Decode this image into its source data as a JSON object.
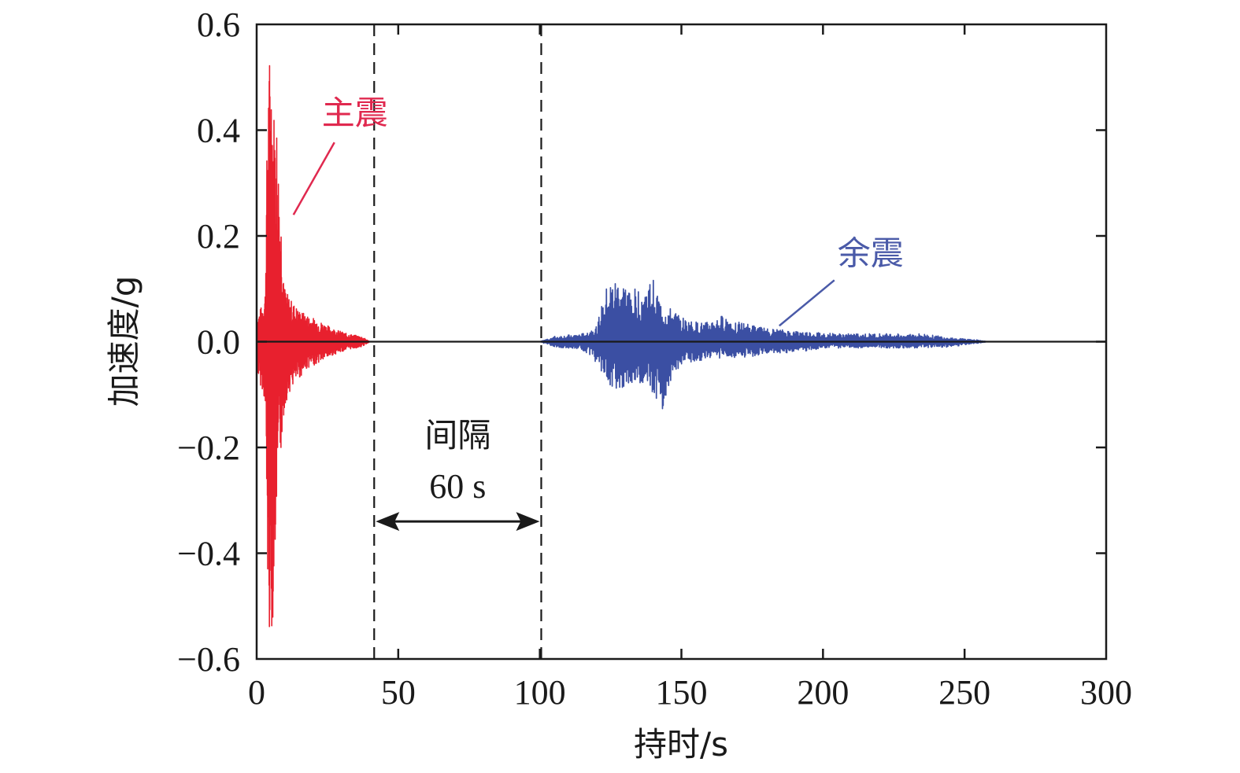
{
  "chart_data": {
    "type": "line",
    "xlabel": "持时/s",
    "ylabel": "加速度/g",
    "xlim": [
      0,
      300
    ],
    "ylim": [
      -0.6,
      0.6
    ],
    "x_ticks": [
      "0",
      "50",
      "100",
      "150",
      "200",
      "250",
      "300"
    ],
    "y_ticks": [
      "0.6",
      "0.4",
      "0.2",
      "0.0",
      "−0.2",
      "−0.4",
      "−0.6"
    ],
    "grid": false,
    "colors": {
      "mainshock": "#e8202e",
      "aftershock": "#3b4fa3",
      "baseline": "#1a1a1a",
      "mainshock_label": "#e0294f",
      "aftershock_label": "#4a5aa8"
    },
    "series": [
      {
        "name": "主震",
        "envelope": [
          {
            "t": 0,
            "max": 0.04,
            "min": -0.05
          },
          {
            "t": 1,
            "max": 0.06,
            "min": -0.08
          },
          {
            "t": 2,
            "max": 0.07,
            "min": -0.09
          },
          {
            "t": 3,
            "max": 0.1,
            "min": -0.12
          },
          {
            "t": 4,
            "max": 0.52,
            "min": -0.52
          },
          {
            "t": 5,
            "max": 0.57,
            "min": -0.58
          },
          {
            "t": 6,
            "max": 0.45,
            "min": -0.5
          },
          {
            "t": 7,
            "max": 0.44,
            "min": -0.33
          },
          {
            "t": 8,
            "max": 0.3,
            "min": -0.25
          },
          {
            "t": 9,
            "max": 0.21,
            "min": -0.18
          },
          {
            "t": 10,
            "max": 0.1,
            "min": -0.12
          },
          {
            "t": 12,
            "max": 0.08,
            "min": -0.09
          },
          {
            "t": 15,
            "max": 0.06,
            "min": -0.07
          },
          {
            "t": 18,
            "max": 0.05,
            "min": -0.05
          },
          {
            "t": 22,
            "max": 0.04,
            "min": -0.04
          },
          {
            "t": 27,
            "max": 0.025,
            "min": -0.025
          },
          {
            "t": 32,
            "max": 0.015,
            "min": -0.015
          },
          {
            "t": 37,
            "max": 0.01,
            "min": -0.01
          },
          {
            "t": 40,
            "max": 0.0,
            "min": 0.0
          }
        ]
      },
      {
        "name": "余震",
        "envelope": [
          {
            "t": 100,
            "max": 0.0,
            "min": 0.0
          },
          {
            "t": 105,
            "max": 0.01,
            "min": -0.01
          },
          {
            "t": 115,
            "max": 0.015,
            "min": -0.015
          },
          {
            "t": 120,
            "max": 0.03,
            "min": -0.04
          },
          {
            "t": 124,
            "max": 0.11,
            "min": -0.09
          },
          {
            "t": 128,
            "max": 0.12,
            "min": -0.09
          },
          {
            "t": 132,
            "max": 0.1,
            "min": -0.08
          },
          {
            "t": 137,
            "max": 0.1,
            "min": -0.09
          },
          {
            "t": 140,
            "max": 0.12,
            "min": -0.1
          },
          {
            "t": 143,
            "max": 0.07,
            "min": -0.14
          },
          {
            "t": 147,
            "max": 0.06,
            "min": -0.06
          },
          {
            "t": 152,
            "max": 0.04,
            "min": -0.04
          },
          {
            "t": 158,
            "max": 0.035,
            "min": -0.035
          },
          {
            "t": 165,
            "max": 0.05,
            "min": -0.03
          },
          {
            "t": 172,
            "max": 0.035,
            "min": -0.03
          },
          {
            "t": 180,
            "max": 0.025,
            "min": -0.025
          },
          {
            "t": 190,
            "max": 0.02,
            "min": -0.02
          },
          {
            "t": 205,
            "max": 0.015,
            "min": -0.012
          },
          {
            "t": 220,
            "max": 0.015,
            "min": -0.012
          },
          {
            "t": 235,
            "max": 0.015,
            "min": -0.012
          },
          {
            "t": 245,
            "max": 0.008,
            "min": -0.01
          },
          {
            "t": 255,
            "max": 0.003,
            "min": -0.003
          },
          {
            "t": 258,
            "max": 0.0,
            "min": 0.0
          }
        ]
      }
    ],
    "interval": {
      "start": 41.5,
      "end": 100.5,
      "label": "间隔",
      "value_label": "60 s",
      "arrow_y": -0.34
    },
    "annotations": [
      {
        "text": "主震",
        "target_t": 13,
        "target_a": 0.24
      },
      {
        "text": "余震",
        "target_t": 184,
        "target_a": 0.027
      }
    ]
  }
}
